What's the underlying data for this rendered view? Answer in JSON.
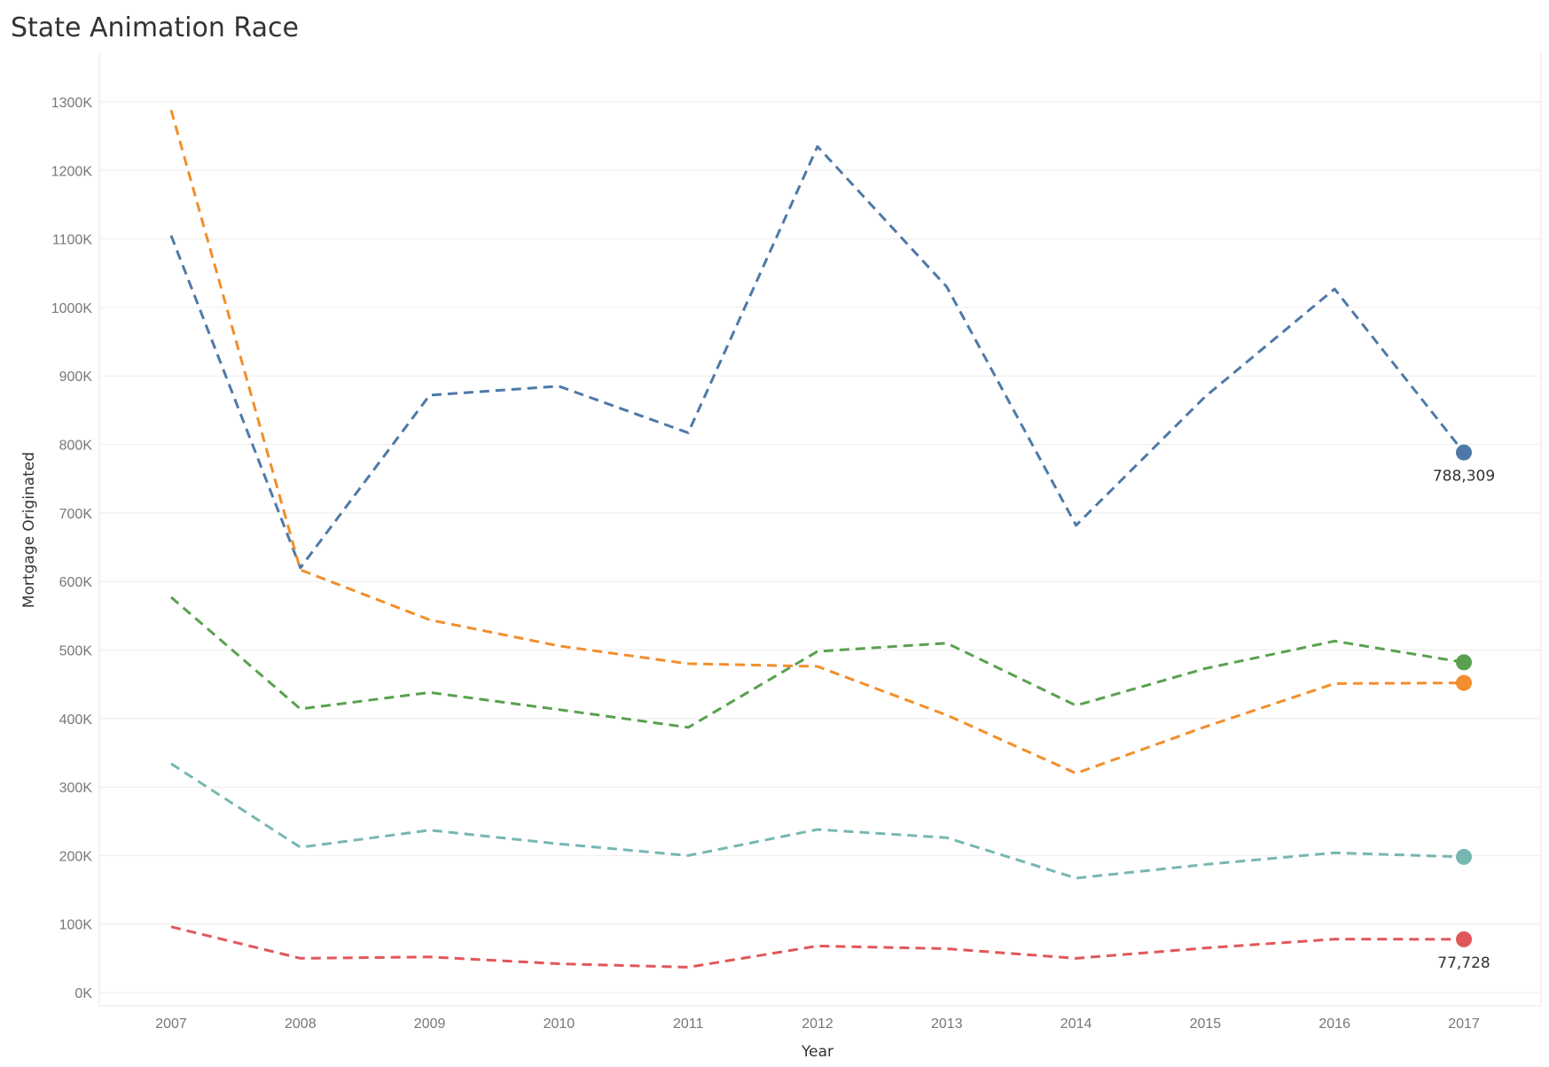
{
  "title": "State Animation Race",
  "chart_data": {
    "type": "line",
    "title": "State Animation Race",
    "xlabel": "Year",
    "ylabel": "Mortgage Originated",
    "x": [
      2007,
      2008,
      2009,
      2010,
      2011,
      2012,
      2013,
      2014,
      2015,
      2016,
      2017
    ],
    "ylim": [
      0,
      1300000
    ],
    "yticks": [
      0,
      100000,
      200000,
      300000,
      400000,
      500000,
      600000,
      700000,
      800000,
      900000,
      1000000,
      1100000,
      1200000,
      1300000
    ],
    "ytick_labels": [
      "0K",
      "100K",
      "200K",
      "300K",
      "400K",
      "500K",
      "600K",
      "700K",
      "800K",
      "900K",
      "1000K",
      "1100K",
      "1200K",
      "1300K"
    ],
    "grid": true,
    "line_style": "dashed",
    "series": [
      {
        "color": "#4e79a7",
        "values": [
          1105000,
          620000,
          872000,
          885000,
          817000,
          1235000,
          1030000,
          682000,
          870000,
          1027000,
          788309
        ],
        "end_label": "788,309"
      },
      {
        "color": "#f28e2b",
        "values": [
          1288000,
          617000,
          544000,
          506000,
          480000,
          476000,
          405000,
          320000,
          388000,
          451000,
          452000
        ],
        "end_label": ""
      },
      {
        "color": "#59a14f",
        "values": [
          577000,
          414000,
          438000,
          413000,
          387000,
          498000,
          510000,
          419000,
          473000,
          513000,
          482000
        ],
        "end_label": ""
      },
      {
        "color": "#76b7b2",
        "values": [
          334000,
          212000,
          237000,
          217000,
          200000,
          238000,
          226000,
          167000,
          187000,
          204000,
          198000
        ],
        "end_label": ""
      },
      {
        "color": "#e15759",
        "values": [
          96000,
          50000,
          52000,
          42000,
          37000,
          68000,
          64000,
          50000,
          65000,
          78000,
          77728
        ],
        "end_label": "77,728"
      }
    ]
  }
}
